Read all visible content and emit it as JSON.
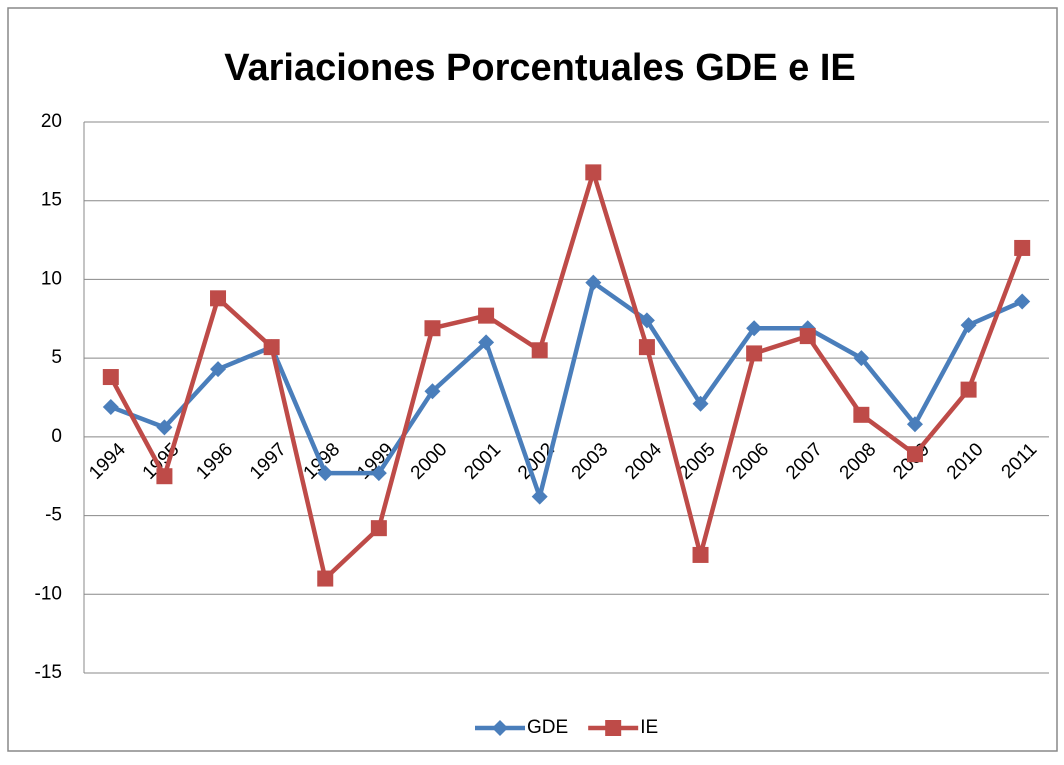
{
  "chart_data": {
    "type": "line",
    "title": "Variaciones Porcentuales GDE e IE",
    "categories": [
      "1994",
      "1995",
      "1996",
      "1997",
      "1998",
      "1999",
      "2000",
      "2001",
      "2002",
      "2003",
      "2004",
      "2005",
      "2006",
      "2007",
      "2008",
      "2009",
      "2010",
      "2011"
    ],
    "series": [
      {
        "name": "GDE",
        "color": "#4a7ebb",
        "marker": "diamond",
        "values": [
          1.9,
          0.6,
          4.3,
          5.7,
          -2.3,
          -2.3,
          2.9,
          6.0,
          -3.8,
          9.8,
          7.4,
          2.1,
          6.9,
          6.9,
          5.0,
          0.8,
          7.1,
          8.6
        ]
      },
      {
        "name": "IE",
        "color": "#be4b48",
        "marker": "square",
        "values": [
          3.8,
          -2.5,
          8.8,
          5.7,
          -9.0,
          -5.8,
          6.9,
          7.7,
          5.5,
          16.8,
          5.7,
          -7.5,
          5.3,
          6.4,
          1.4,
          -1.1,
          3.0,
          12.0
        ]
      }
    ],
    "ylim": [
      -15,
      20
    ],
    "yticks": [
      -15,
      -10,
      -5,
      0,
      5,
      10,
      15,
      20
    ],
    "grid": true,
    "legend": "bottom"
  }
}
